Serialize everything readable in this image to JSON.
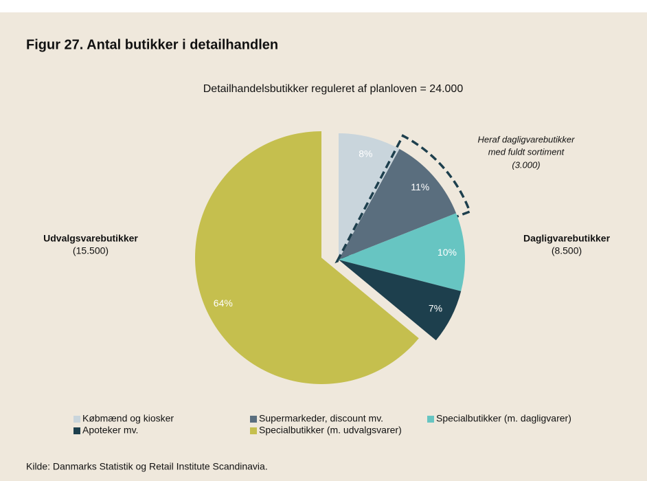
{
  "chart_data": {
    "type": "pie",
    "title": "Figur 27. Antal butikker i detailhandlen",
    "subtitle": "Detailhandelsbutikker reguleret af planloven = 24.000",
    "categories": [
      "Købmænd og kiosker",
      "Supermarkeder, discount mv.",
      "Specialbutikker (m. dagligvarer)",
      "Apoteker mv.",
      "Specialbutikker (m. udvalgsvarer)"
    ],
    "values": [
      8,
      11,
      10,
      7,
      64
    ],
    "value_labels": [
      "8%",
      "11%",
      "10%",
      "7%",
      "64%"
    ],
    "colors": [
      "#c9d5dc",
      "#5a6e7e",
      "#67c5c2",
      "#1d3f4d",
      "#c5bf4e"
    ],
    "annotations": {
      "highlight": [
        "Heraf dagligvarebutikker",
        "med fuldt sortiment",
        "(3.000)"
      ],
      "left_group": {
        "name": "Udvalgsvarebutikker",
        "count": "(15.500)"
      },
      "right_group": {
        "name": "Dagligvarebutikker",
        "count": "(8.500)"
      }
    },
    "source": "Kilde: Danmarks Statistik og Retail Institute Scandinavia."
  }
}
